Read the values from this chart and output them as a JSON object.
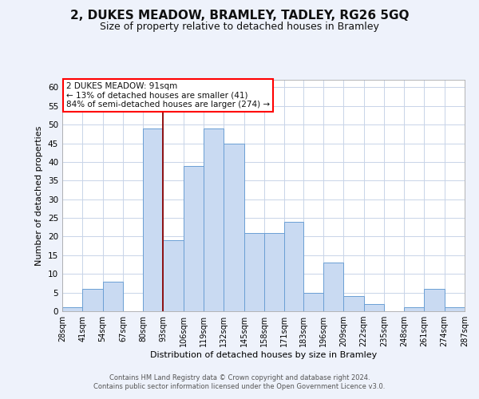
{
  "title": "2, DUKES MEADOW, BRAMLEY, TADLEY, RG26 5GQ",
  "subtitle": "Size of property relative to detached houses in Bramley",
  "xlabel": "Distribution of detached houses by size in Bramley",
  "ylabel": "Number of detached properties",
  "bin_edges": [
    28,
    41,
    54,
    67,
    80,
    93,
    106,
    119,
    132,
    145,
    158,
    171,
    183,
    196,
    209,
    222,
    235,
    248,
    261,
    274,
    287
  ],
  "bar_heights": [
    1,
    6,
    8,
    0,
    49,
    19,
    39,
    49,
    45,
    21,
    21,
    24,
    5,
    13,
    4,
    2,
    0,
    1,
    6,
    1
  ],
  "bar_color": "#c9daf2",
  "bar_edge_color": "#6b9fd4",
  "red_line_x": 93,
  "ylim": [
    0,
    62
  ],
  "yticks": [
    0,
    5,
    10,
    15,
    20,
    25,
    30,
    35,
    40,
    45,
    50,
    55,
    60
  ],
  "annotation_line1": "2 DUKES MEADOW: 91sqm",
  "annotation_line2": "← 13% of detached houses are smaller (41)",
  "annotation_line3": "84% of semi-detached houses are larger (274) →",
  "footer_line1": "Contains HM Land Registry data © Crown copyright and database right 2024.",
  "footer_line2": "Contains public sector information licensed under the Open Government Licence v3.0.",
  "bg_color": "#eef2fb",
  "plot_bg_color": "#ffffff",
  "grid_color": "#c8d4e8",
  "title_fontsize": 11,
  "subtitle_fontsize": 9,
  "ylabel_fontsize": 8,
  "xlabel_fontsize": 8,
  "tick_fontsize": 7,
  "annotation_fontsize": 7.5,
  "footer_fontsize": 6
}
